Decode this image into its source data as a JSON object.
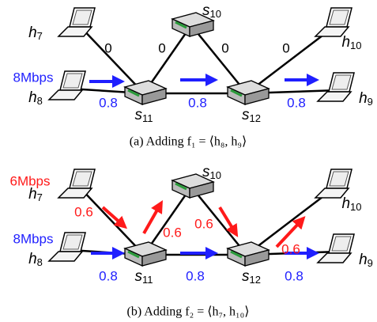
{
  "panels": [
    {
      "nodes": [
        {
          "name": "h",
          "sub": "7"
        },
        {
          "name": "s",
          "sub": "10"
        },
        {
          "name": "h",
          "sub": "10"
        },
        {
          "name": "h",
          "sub": "8"
        },
        {
          "name": "s",
          "sub": "11"
        },
        {
          "name": "s",
          "sub": "12"
        },
        {
          "name": "h",
          "sub": "9"
        }
      ],
      "rates": [
        "8Mbps"
      ],
      "link_labels": [
        "0",
        "0",
        "0",
        "0",
        "0.8",
        "0.8",
        "0.8"
      ],
      "caption": "(a) Adding f₁ = ⟨h₈, h₉⟩"
    },
    {
      "nodes": [
        {
          "name": "h",
          "sub": "7"
        },
        {
          "name": "s",
          "sub": "10"
        },
        {
          "name": "h",
          "sub": "10"
        },
        {
          "name": "h",
          "sub": "8"
        },
        {
          "name": "s",
          "sub": "11"
        },
        {
          "name": "s",
          "sub": "12"
        },
        {
          "name": "h",
          "sub": "9"
        }
      ],
      "rates": [
        "6Mbps",
        "8Mbps"
      ],
      "link_labels": [
        "0.6",
        "0.6",
        "0.6",
        "0.6",
        "0.8",
        "0.8",
        "0.8"
      ],
      "caption": "(b) Adding f₂ = ⟨h₇, h₁₀⟩"
    }
  ]
}
